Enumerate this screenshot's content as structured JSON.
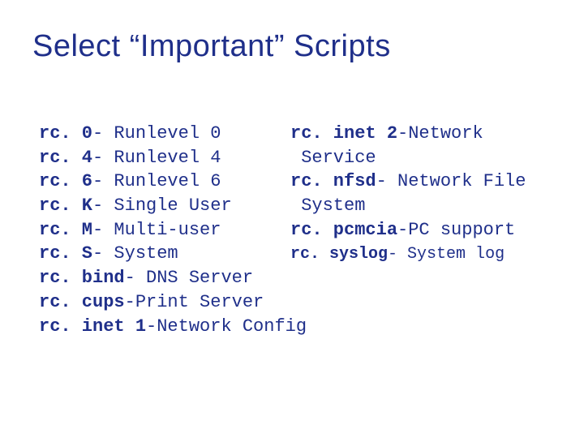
{
  "title": "Select “Important” Scripts",
  "colors": {
    "text": "#1f2f8a",
    "background": "#ffffff"
  },
  "typography": {
    "title_font": "Verdana",
    "title_size_pt": 29,
    "body_font": "Courier New",
    "body_size_pt": 17
  },
  "left": [
    {
      "name": "rc. 0",
      "sep": "- ",
      "desc": "Runlevel 0"
    },
    {
      "name": "rc. 4",
      "sep": "- ",
      "desc": "Runlevel 4"
    },
    {
      "name": "rc. 6",
      "sep": "- ",
      "desc": "Runlevel 6"
    },
    {
      "name": "rc. K",
      "sep": "- ",
      "desc": "Single User"
    },
    {
      "name": "rc. M",
      "sep": "- ",
      "desc": "Multi-user"
    },
    {
      "name": "rc. S",
      "sep": "- ",
      "desc": "System"
    },
    {
      "name": "rc. bind",
      "sep": "- ",
      "desc": "DNS Server"
    },
    {
      "name": "rc. cups",
      "sep": "-",
      "desc": "Print Server"
    },
    {
      "name": "rc. inet 1",
      "sep": "-",
      "desc": "Network Config"
    }
  ],
  "right": [
    {
      "name": "rc. inet 2",
      "sep": "-",
      "desc": "Network"
    },
    {
      "name": "",
      "sep": "",
      "desc": "Service"
    },
    {
      "name": "rc. nfsd",
      "sep": "- ",
      "desc": "Network File"
    },
    {
      "name": "",
      "sep": "",
      "desc": "System"
    },
    {
      "name": "rc. pcmcia",
      "sep": "-",
      "desc": "PC support"
    },
    {
      "name": "rc. syslog",
      "sep": "- ",
      "desc": "System log"
    }
  ]
}
